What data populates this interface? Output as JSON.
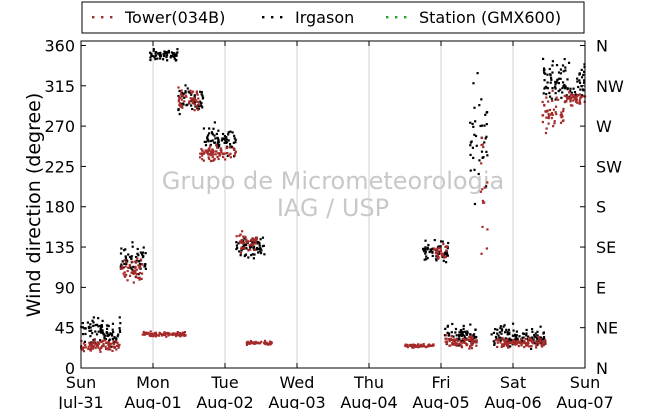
{
  "chart_data": {
    "type": "scatter",
    "ylabel": "Wind direction (degree)",
    "ylim": [
      0,
      365
    ],
    "x_range_days": [
      0,
      7
    ],
    "yticks": [
      0,
      45,
      90,
      135,
      180,
      225,
      270,
      315,
      360
    ],
    "right_axis_ticks": [
      {
        "y": 0,
        "label": "N"
      },
      {
        "y": 45,
        "label": "NE"
      },
      {
        "y": 90,
        "label": "E"
      },
      {
        "y": 135,
        "label": "SE"
      },
      {
        "y": 180,
        "label": "S"
      },
      {
        "y": 225,
        "label": "SW"
      },
      {
        "y": 270,
        "label": "W"
      },
      {
        "y": 315,
        "label": "NW"
      },
      {
        "y": 360,
        "label": "N"
      }
    ],
    "xticks": [
      {
        "x": 0,
        "day": "Sun",
        "date": "Jul-31"
      },
      {
        "x": 1,
        "day": "Mon",
        "date": "Aug-01"
      },
      {
        "x": 2,
        "day": "Tue",
        "date": "Aug-02"
      },
      {
        "x": 3,
        "day": "Wed",
        "date": "Aug-03"
      },
      {
        "x": 4,
        "day": "Thu",
        "date": "Aug-04"
      },
      {
        "x": 5,
        "day": "Fri",
        "date": "Aug-05"
      },
      {
        "x": 6,
        "day": "Sat",
        "date": "Aug-06"
      },
      {
        "x": 7,
        "day": "Sun",
        "date": "Aug-07"
      }
    ],
    "grid": "vertical",
    "legend_placement": "top",
    "watermark": [
      "Grupo de Micrometeorologia",
      "IAG / USP"
    ],
    "series": [
      {
        "name": "Tower(034B)",
        "color": "#a52a2a",
        "segments": [
          {
            "x0": 0.0,
            "x1": 0.55,
            "y": 25,
            "spread": 10
          },
          {
            "x0": 0.55,
            "x1": 0.85,
            "y": 110,
            "spread": 25
          },
          {
            "x0": 0.85,
            "x1": 1.45,
            "y": 38,
            "spread": 5
          },
          {
            "x0": 1.35,
            "x1": 1.65,
            "y": 300,
            "spread": 20
          },
          {
            "x0": 1.65,
            "x1": 2.15,
            "y": 240,
            "spread": 15
          },
          {
            "x0": 2.15,
            "x1": 2.45,
            "y": 140,
            "spread": 15
          },
          {
            "x0": 2.3,
            "x1": 2.65,
            "y": 28,
            "spread": 3
          },
          {
            "x0": 4.5,
            "x1": 4.9,
            "y": 25,
            "spread": 3
          },
          {
            "x0": 4.9,
            "x1": 5.1,
            "y": 130,
            "spread": 12
          },
          {
            "x0": 5.05,
            "x1": 5.5,
            "y": 30,
            "spread": 12
          },
          {
            "x0": 5.55,
            "x1": 5.65,
            "y": 200,
            "spread": 140
          },
          {
            "x0": 5.75,
            "x1": 6.45,
            "y": 28,
            "spread": 10
          },
          {
            "x0": 6.4,
            "x1": 6.7,
            "y": 285,
            "spread": 30
          },
          {
            "x0": 6.7,
            "x1": 7.0,
            "y": 300,
            "spread": 12
          }
        ]
      },
      {
        "name": "Irgason",
        "color": "#000000",
        "segments": [
          {
            "x0": 0.0,
            "x1": 0.55,
            "y": 40,
            "spread": 25
          },
          {
            "x0": 0.55,
            "x1": 0.9,
            "y": 120,
            "spread": 30
          },
          {
            "x0": 0.95,
            "x1": 1.35,
            "y": 350,
            "spread": 10
          },
          {
            "x0": 1.35,
            "x1": 1.7,
            "y": 300,
            "spread": 25
          },
          {
            "x0": 1.7,
            "x1": 2.15,
            "y": 255,
            "spread": 25
          },
          {
            "x0": 2.15,
            "x1": 2.55,
            "y": 135,
            "spread": 20
          },
          {
            "x0": 4.75,
            "x1": 5.1,
            "y": 130,
            "spread": 20
          },
          {
            "x0": 5.05,
            "x1": 5.5,
            "y": 35,
            "spread": 20
          },
          {
            "x0": 5.4,
            "x1": 5.65,
            "y": 250,
            "spread": 110
          },
          {
            "x0": 5.7,
            "x1": 6.45,
            "y": 35,
            "spread": 20
          },
          {
            "x0": 6.4,
            "x1": 7.0,
            "y": 320,
            "spread": 35
          }
        ]
      },
      {
        "name": "Station (GMX600)",
        "color": "#2ca02c",
        "segments": []
      }
    ]
  }
}
